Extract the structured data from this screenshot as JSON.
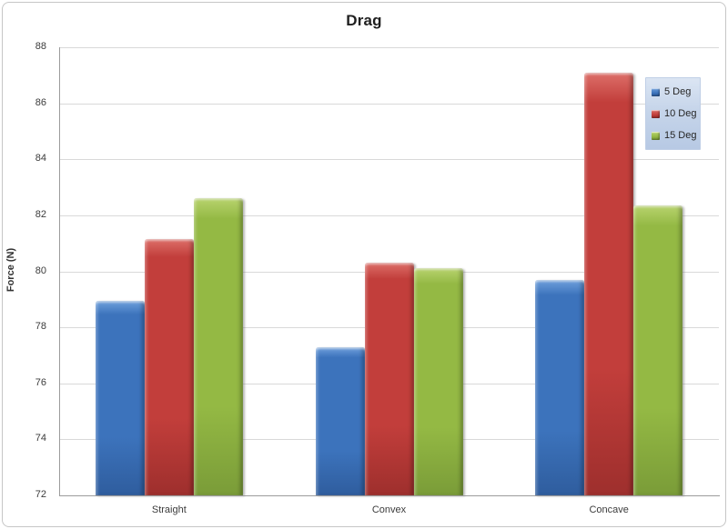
{
  "chart_data": {
    "type": "bar",
    "title": "Drag",
    "xlabel": "",
    "ylabel": "Force (N)",
    "categories": [
      "Straight",
      "Convex",
      "Concave"
    ],
    "series": [
      {
        "name": "5 Deg",
        "color": "#3c73bc",
        "color_light": "#6fa0dc",
        "color_dark": "#2f5d9e",
        "values": [
          78.95,
          77.3,
          79.7
        ]
      },
      {
        "name": "10 Deg",
        "color": "#c23e3b",
        "color_light": "#dd6f69",
        "color_dark": "#9e2f2d",
        "values": [
          81.15,
          80.3,
          87.1
        ]
      },
      {
        "name": "15 Deg",
        "color": "#94b944",
        "color_light": "#b8d36e",
        "color_dark": "#7a9c38",
        "values": [
          82.6,
          80.1,
          82.35
        ]
      }
    ],
    "ylim": [
      72,
      88
    ],
    "ytick_step": 2,
    "yticks": [
      72,
      74,
      76,
      78,
      80,
      82,
      84,
      86,
      88
    ],
    "grid": "horizontal",
    "legend_position": "right",
    "colors": {
      "gridline": "#d9d9d9",
      "axis": "#9c9c9c",
      "legend_background": "#c6d5ea",
      "frame_border": "#c6c6c6",
      "text": "#3b3b3b"
    }
  }
}
